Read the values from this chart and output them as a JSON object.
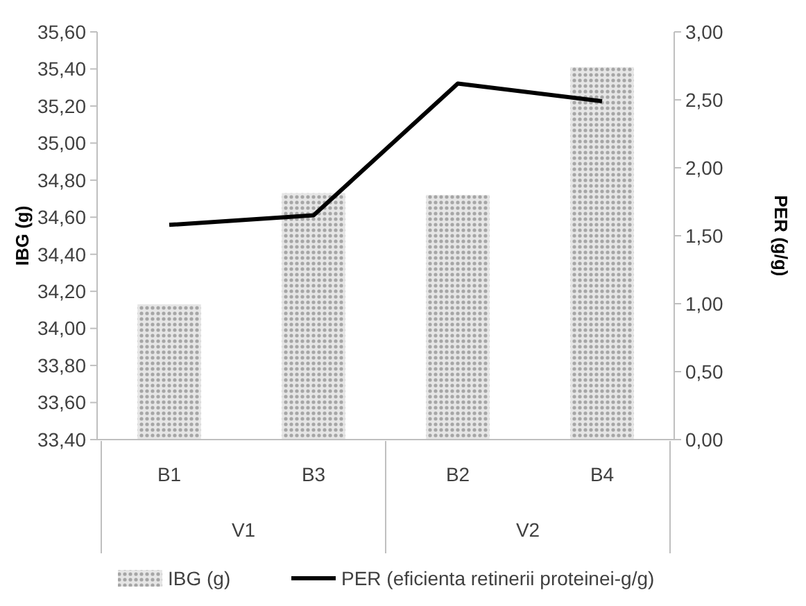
{
  "chart_data": {
    "type": "bar",
    "categories": [
      "B1",
      "B3",
      "B2",
      "B4"
    ],
    "annotations": [
      "V1",
      "V2"
    ],
    "ylabel": "IBG (g)",
    "y2label": "PER (g/g)",
    "series": [
      {
        "name": "IBG (g)",
        "color": "#a6a6a6",
        "values": [
          34.13,
          34.73,
          34.72,
          35.41
        ]
      },
      {
        "name": "PER (eficienta retinerii proteinei-g/g)",
        "type": "line",
        "axis": "y2",
        "color": "#000000",
        "values": [
          1.58,
          1.65,
          2.62,
          2.49
        ]
      }
    ],
    "ylim": [
      33.4,
      35.6
    ],
    "yticks": [
      {
        "value": 33.4,
        "label": "33,40"
      },
      {
        "value": 33.6,
        "label": "33,60"
      },
      {
        "value": 33.8,
        "label": "33,80"
      },
      {
        "value": 34.0,
        "label": "34,00"
      },
      {
        "value": 34.2,
        "label": "34,20"
      },
      {
        "value": 34.4,
        "label": "34,40"
      },
      {
        "value": 34.6,
        "label": "34,60"
      },
      {
        "value": 34.8,
        "label": "34,80"
      },
      {
        "value": 35.0,
        "label": "35,00"
      },
      {
        "value": 35.2,
        "label": "35,20"
      },
      {
        "value": 35.4,
        "label": "35,40"
      },
      {
        "value": 35.6,
        "label": "35,60"
      }
    ],
    "y2lim": [
      0,
      3
    ],
    "y2ticks": [
      {
        "value": 0,
        "label": "0,00"
      },
      {
        "value": 0.5,
        "label": "0,50"
      },
      {
        "value": 1,
        "label": "1,00"
      },
      {
        "value": 1.5,
        "label": "1,50"
      },
      {
        "value": 2,
        "label": "2,00"
      },
      {
        "value": 2.5,
        "label": "2,50"
      },
      {
        "value": 3,
        "label": "3,00"
      }
    ],
    "legend": "bottom",
    "marker": "none",
    "line_style": "solid"
  }
}
